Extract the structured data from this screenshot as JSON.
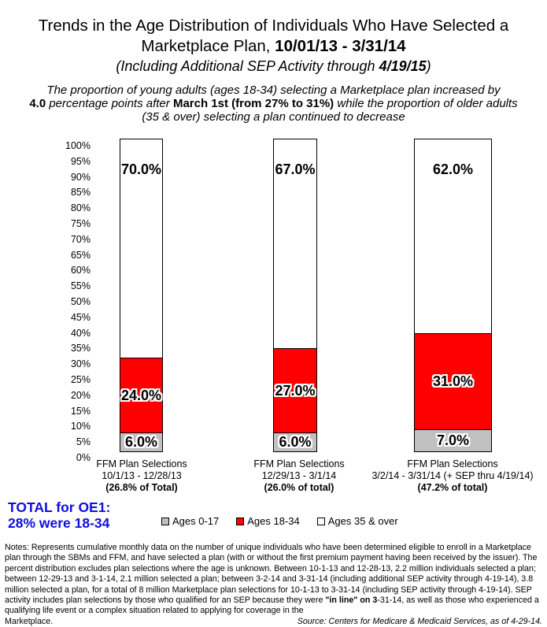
{
  "title": {
    "line1": "Trends in the Age Distribution of Individuals Who Have Selected a",
    "line2_normal": "Marketplace Plan, ",
    "line2_bold": "10/01/13 - 3/31/14",
    "line3_pre": "(Including Additional SEP Activity through ",
    "line3_bold": "4/19/15",
    "line3_post": ")"
  },
  "subtitle": {
    "line1": "The proportion of young adults (ages 18-34) selecting a Marketplace plan increased by",
    "line2_bold1": "4.0",
    "line2_italic1": " percentage points after ",
    "line2_bold2": "March 1st (from 27% to 31%)",
    "line2_italic2": " while the proportion of older adults",
    "line3": "(35 & over) selecting a plan continued to decrease"
  },
  "chart_data": {
    "type": "bar",
    "stacked": true,
    "grid": false,
    "legend_position": "bottom",
    "ylim": [
      0,
      100
    ],
    "y_tick_step": 5,
    "y_ticks": [
      "100%",
      "95%",
      "90%",
      "85%",
      "80%",
      "75%",
      "70%",
      "65%",
      "60%",
      "55%",
      "50%",
      "45%",
      "40%",
      "35%",
      "30%",
      "25%",
      "20%",
      "15%",
      "10%",
      "5%",
      "0%"
    ],
    "categories": [
      [
        "FFM Plan Selections",
        "10/1/13 - 12/28/13",
        "(26.8% of Total)"
      ],
      [
        "FFM Plan Selections",
        "12/29/13 - 3/1/14",
        "(26.0% of total)"
      ],
      [
        "FFM Plan Selections",
        "3/2/14 - 3/31/14 (+ SEP thru 4/19/14)",
        "(47.2% of total)"
      ]
    ],
    "series": [
      {
        "name": "Ages 0-17",
        "color": "#c0c0c0",
        "values": [
          6.0,
          6.0,
          7.0
        ],
        "labels": [
          "6.0%",
          "6.0%",
          "7.0%"
        ]
      },
      {
        "name": "Ages 18-34",
        "color": "#ff0000",
        "values": [
          24.0,
          27.0,
          31.0
        ],
        "labels": [
          "24.0%",
          "27.0%",
          "31.0%"
        ]
      },
      {
        "name": "Ages 35 & over",
        "color": "#ffffff",
        "values": [
          70.0,
          67.0,
          62.0
        ],
        "labels": [
          "70.0%",
          "67.0%",
          "62.0%"
        ]
      }
    ]
  },
  "total_callout": {
    "line1": "TOTAL for OE1:",
    "line2": "28% were 18-34",
    "color": "#0f0fe0"
  },
  "legend": {
    "items": [
      {
        "label": "Ages 0-17",
        "color": "#c0c0c0"
      },
      {
        "label": "Ages 18-34",
        "color": "#ff0000"
      },
      {
        "label": "Ages 35 & over",
        "color": "#ffffff"
      }
    ]
  },
  "notes": {
    "prefix": "Notes:  Represents cumulative monthly data on the number of unique individuals who have been determined eligible to enroll in a Marketplace plan through the SBMs and FFM, and have selected a plan (with or without the first premium payment having been received by the issuer).  The percent distribution excludes plan selections where the age is unknown.  Between 10-1-13 and 12-28-13, 2.2 million individuals selected a plan; between 12-29-13 and 3-1-14, 2.1 million selected a plan; between 3-2-14 and 3-31-14 (including additional SEP activity through 4-19-14), 3.8 million selected a plan, for a total of 8 million Marketplace plan selections for 10-1-13 to 3-31-14 (including SEP activity through 4-19-14). SEP activity includes plan selections by those who qualified for an SEP because they were ",
    "bold": "\"in line\" on 3",
    "suffix": "-31-14, as well as those who experienced a qualifying life event or a complex situation related to applying for coverage in the",
    "last_line": "Marketplace.",
    "source": "Source:  Centers for Medicare & Medicaid Services, as of 4-29-14."
  }
}
